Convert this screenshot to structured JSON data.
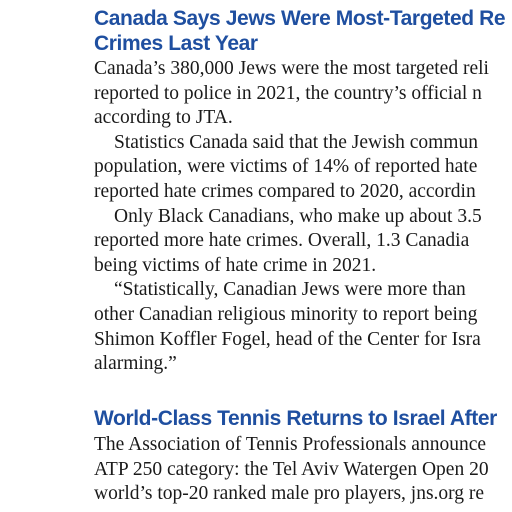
{
  "articles": [
    {
      "headline_lines": [
        "Canada Says Jews Were Most-Targeted Re",
        "Crimes Last Year"
      ],
      "paragraphs": [
        {
          "lines": [
            "Canada’s 380,000 Jews were the most targeted reli",
            "reported to police in 2021, the country’s official n",
            "according to JTA."
          ]
        },
        {
          "lines": [
            "Statistics Canada said that the Jewish commun",
            "population, were victims of 14% of reported hate",
            "reported hate crimes compared to 2020, accordin"
          ]
        },
        {
          "lines": [
            "Only Black Canadians, who make up about 3.5",
            "reported more hate crimes. Overall, 1.3 Canadia",
            "being victims of hate crime in 2021."
          ]
        },
        {
          "lines": [
            "“Statistically, Canadian Jews were more than",
            "other Canadian religious minority to report being",
            "Shimon Koffler Fogel, head of the Center for Isra",
            "alarming.”"
          ]
        }
      ]
    },
    {
      "headline_lines": [
        "World-Class Tennis Returns to Israel After"
      ],
      "paragraphs": [
        {
          "lines": [
            "The Association of Tennis Professionals announce",
            "ATP 250 category: the Tel Aviv Watergen Open 20",
            "world’s top-20 ranked male pro players, jns.org re"
          ]
        }
      ]
    }
  ]
}
